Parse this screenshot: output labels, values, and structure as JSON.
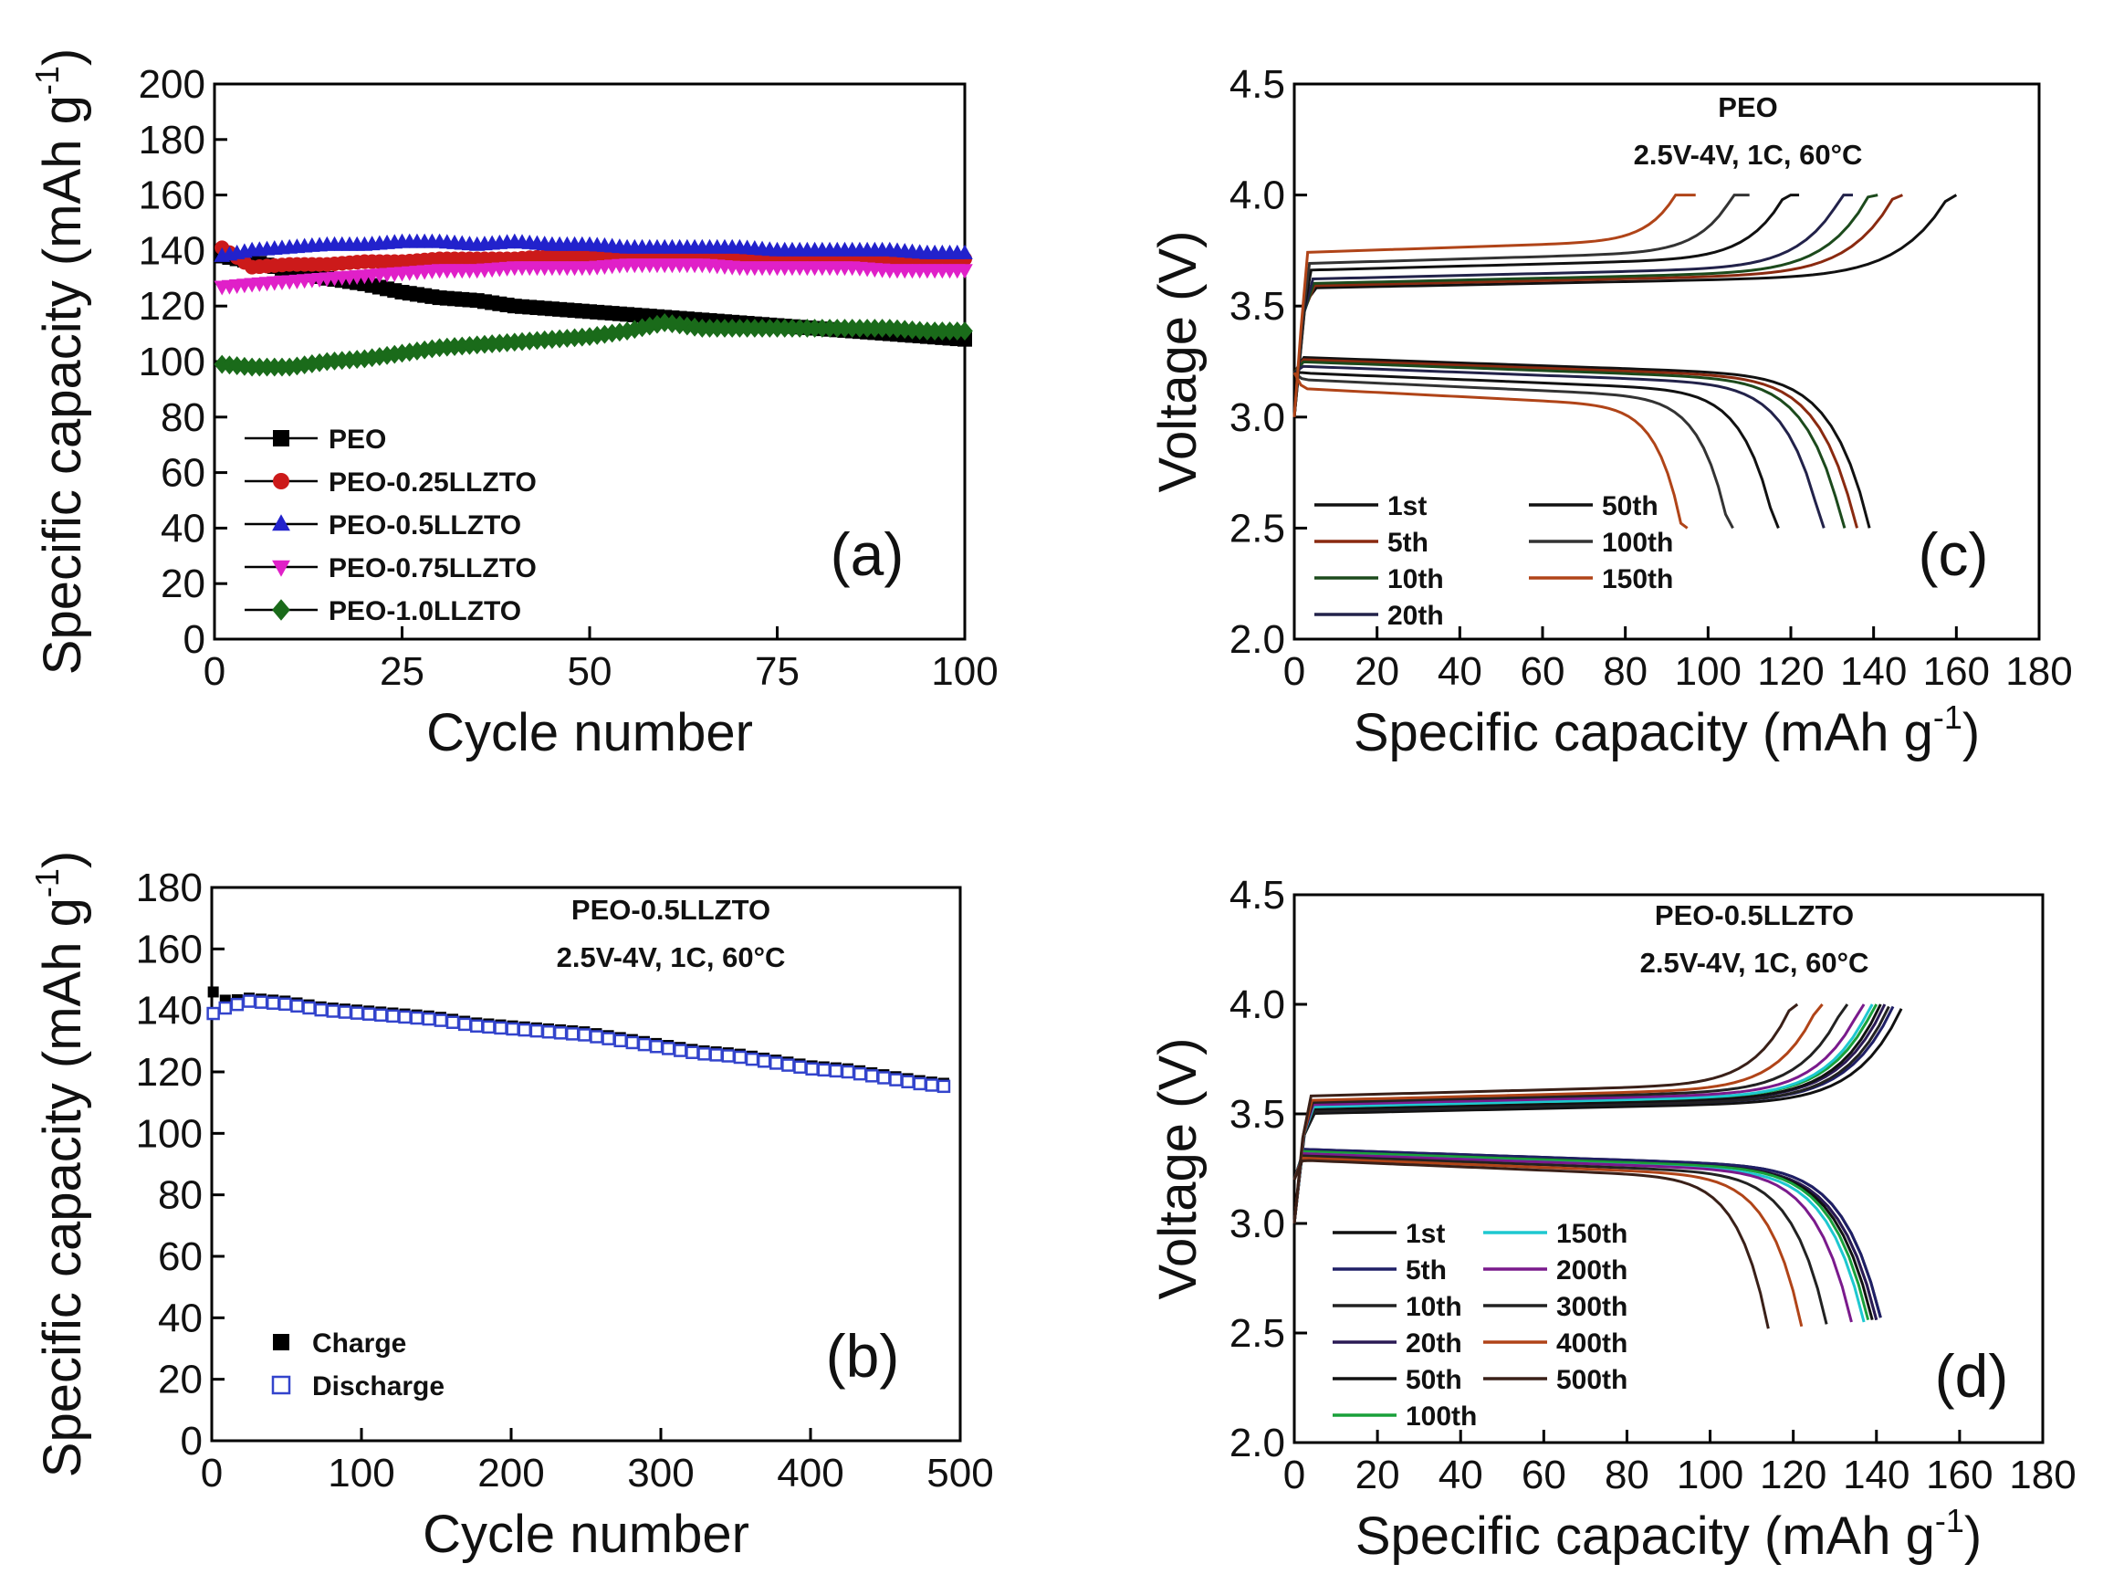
{
  "chart_data": [
    {
      "panel": "a",
      "type": "scatter",
      "panel_label": "(a)",
      "xlabel": "Cycle number",
      "ylabel": "Specific capacity (mAh g",
      "ylabel_sup": "-1",
      "ylabel_end": ")",
      "xlim": [
        0,
        100
      ],
      "ylim": [
        0,
        200
      ],
      "xticks": [
        "0",
        "25",
        "50",
        "75",
        "100"
      ],
      "yticks": [
        "0",
        "20",
        "40",
        "60",
        "80",
        "100",
        "120",
        "140",
        "160",
        "180",
        "200"
      ],
      "legend_position": "bottom-left",
      "series": [
        {
          "name": "PEO",
          "marker": "square",
          "color": "#000000",
          "x": [
            1,
            5,
            10,
            15,
            20,
            25,
            30,
            35,
            40,
            45,
            50,
            55,
            60,
            65,
            70,
            75,
            80,
            85,
            90,
            95,
            100
          ],
          "y": [
            138,
            136,
            133,
            130,
            128,
            125,
            123,
            122,
            120,
            119,
            118,
            117,
            116,
            115,
            114,
            113,
            112,
            111,
            110,
            109,
            108
          ]
        },
        {
          "name": "PEO-0.25LLZTO",
          "marker": "circle",
          "color": "#cc1a1a",
          "x": [
            1,
            5,
            10,
            15,
            20,
            25,
            30,
            35,
            40,
            45,
            50,
            55,
            60,
            65,
            70,
            75,
            80,
            85,
            90,
            95,
            100
          ],
          "y": [
            141,
            134,
            135,
            135,
            136,
            136,
            137,
            137,
            137,
            138,
            138,
            138,
            138,
            138,
            138,
            138,
            138,
            137,
            137,
            137,
            137
          ]
        },
        {
          "name": "PEO-0.5LLZTO",
          "marker": "triangle-up",
          "color": "#2222cc",
          "x": [
            1,
            5,
            10,
            15,
            20,
            25,
            30,
            35,
            40,
            45,
            50,
            55,
            60,
            65,
            70,
            75,
            80,
            85,
            90,
            95,
            100
          ],
          "y": [
            138,
            140,
            141,
            142,
            142,
            143,
            143,
            142,
            143,
            142,
            142,
            141,
            141,
            141,
            141,
            140,
            140,
            140,
            140,
            139,
            139
          ]
        },
        {
          "name": "PEO-0.75LLZTO",
          "marker": "triangle-down",
          "color": "#e020c8",
          "x": [
            1,
            5,
            10,
            15,
            20,
            25,
            30,
            35,
            40,
            45,
            50,
            55,
            60,
            65,
            70,
            75,
            80,
            85,
            90,
            95,
            100
          ],
          "y": [
            127,
            128,
            129,
            130,
            131,
            132,
            133,
            133,
            134,
            134,
            134,
            135,
            135,
            135,
            134,
            134,
            134,
            134,
            133,
            133,
            133
          ]
        },
        {
          "name": "PEO-1.0LLZTO",
          "marker": "diamond",
          "color": "#1a6b1a",
          "x": [
            1,
            5,
            10,
            15,
            20,
            25,
            30,
            35,
            40,
            45,
            50,
            55,
            60,
            65,
            70,
            75,
            80,
            85,
            90,
            95,
            100
          ],
          "y": [
            99,
            98,
            98,
            100,
            101,
            103,
            105,
            106,
            107,
            108,
            109,
            111,
            114,
            112,
            112,
            112,
            112,
            112,
            112,
            111,
            111
          ]
        }
      ]
    },
    {
      "panel": "b",
      "type": "scatter",
      "panel_label": "(b)",
      "xlabel": "Cycle number",
      "ylabel": "Specific capacity (mAh g",
      "ylabel_sup": "-1",
      "ylabel_end": ")",
      "xlim": [
        0,
        500
      ],
      "ylim": [
        0,
        180
      ],
      "xticks": [
        "0",
        "100",
        "200",
        "300",
        "400",
        "500"
      ],
      "yticks": [
        "0",
        "20",
        "40",
        "60",
        "80",
        "100",
        "120",
        "140",
        "160",
        "180"
      ],
      "annotation": [
        "PEO-0.5LLZTO",
        "2.5V-4V, 1C, 60°C"
      ],
      "legend_position": "bottom-left",
      "series": [
        {
          "name": "Charge",
          "marker": "filled-square",
          "color": "#000000",
          "x": [
            1,
            10,
            25,
            50,
            75,
            100,
            125,
            150,
            175,
            200,
            225,
            250,
            275,
            300,
            325,
            350,
            375,
            400,
            425,
            450,
            475,
            495
          ],
          "y": [
            146,
            143,
            144,
            143,
            141,
            140,
            139,
            138,
            136,
            135,
            134,
            133,
            131,
            129,
            127,
            126,
            124,
            122,
            121,
            119,
            117,
            116
          ]
        },
        {
          "name": "Discharge",
          "marker": "open-square",
          "color": "#3344cc",
          "x": [
            1,
            10,
            25,
            50,
            75,
            100,
            125,
            150,
            175,
            200,
            225,
            250,
            275,
            300,
            325,
            350,
            375,
            400,
            425,
            450,
            475,
            495
          ],
          "y": [
            139,
            141,
            143,
            142,
            140,
            139,
            138,
            137,
            135,
            134,
            133,
            132,
            130,
            128,
            126,
            125,
            123,
            121,
            120,
            118,
            116,
            115
          ]
        }
      ]
    },
    {
      "panel": "c",
      "type": "line",
      "panel_label": "(c)",
      "xlabel": "Specific capacity (mAh g",
      "xlabel_sup": "-1",
      "xlabel_end": ")",
      "ylabel": "Voltage (V)",
      "xlim": [
        0,
        180
      ],
      "ylim": [
        2.0,
        4.5
      ],
      "xticks": [
        "0",
        "20",
        "40",
        "60",
        "80",
        "100",
        "120",
        "140",
        "160",
        "180"
      ],
      "yticks": [
        "2.0",
        "2.5",
        "3.0",
        "3.5",
        "4.0",
        "4.5"
      ],
      "annotation": [
        "PEO",
        "2.5V-4V, 1C, 60°C"
      ],
      "legend_position": "bottom-left",
      "series": [
        {
          "name": "1st",
          "color": "#111111",
          "charge_end": 160,
          "charge_plateau": 3.58,
          "discharge_end": 139,
          "discharge_plateau": 3.27
        },
        {
          "name": "5th",
          "color": "#8a2a10",
          "charge_end": 147,
          "charge_plateau": 3.59,
          "discharge_end": 136,
          "discharge_plateau": 3.26
        },
        {
          "name": "10th",
          "color": "#1c4a1c",
          "charge_end": 141,
          "charge_plateau": 3.6,
          "discharge_end": 133,
          "discharge_plateau": 3.25
        },
        {
          "name": "20th",
          "color": "#22224a",
          "charge_end": 135,
          "charge_plateau": 3.62,
          "discharge_end": 128,
          "discharge_plateau": 3.23
        },
        {
          "name": "50th",
          "color": "#111111",
          "charge_end": 122,
          "charge_plateau": 3.66,
          "discharge_end": 117,
          "discharge_plateau": 3.2
        },
        {
          "name": "100th",
          "color": "#333333",
          "charge_end": 110,
          "charge_plateau": 3.69,
          "discharge_end": 106,
          "discharge_plateau": 3.17
        },
        {
          "name": "150th",
          "color": "#b04418",
          "charge_end": 97,
          "charge_plateau": 3.74,
          "discharge_end": 95,
          "discharge_plateau": 3.13
        }
      ]
    },
    {
      "panel": "d",
      "type": "line",
      "panel_label": "(d)",
      "xlabel": "Specific capacity (mAh g",
      "xlabel_sup": "-1",
      "xlabel_end": ")",
      "ylabel": "Voltage (V)",
      "xlim": [
        0,
        180
      ],
      "ylim": [
        2.0,
        4.5
      ],
      "xticks": [
        "0",
        "20",
        "40",
        "60",
        "80",
        "100",
        "120",
        "140",
        "160",
        "180"
      ],
      "yticks": [
        "2.0",
        "2.5",
        "3.0",
        "3.5",
        "4.0",
        "4.5"
      ],
      "annotation": [
        "PEO-0.5LLZTO",
        "2.5V-4V, 1C, 60°C"
      ],
      "legend_position": "bottom-left",
      "series": [
        {
          "name": "1st",
          "color": "#111111",
          "charge_end": 146,
          "charge_plateau": 3.5,
          "discharge_end": 141,
          "discharge_plateau": 3.34
        },
        {
          "name": "5th",
          "color": "#1f1f66",
          "charge_end": 144,
          "charge_plateau": 3.51,
          "discharge_end": 141,
          "discharge_plateau": 3.34
        },
        {
          "name": "10th",
          "color": "#222222",
          "charge_end": 143,
          "charge_plateau": 3.51,
          "discharge_end": 140,
          "discharge_plateau": 3.33
        },
        {
          "name": "20th",
          "color": "#2a1a55",
          "charge_end": 142,
          "charge_plateau": 3.52,
          "discharge_end": 140,
          "discharge_plateau": 3.33
        },
        {
          "name": "50th",
          "color": "#111111",
          "charge_end": 141,
          "charge_plateau": 3.52,
          "discharge_end": 139,
          "discharge_plateau": 3.33
        },
        {
          "name": "100th",
          "color": "#19a03a",
          "charge_end": 140,
          "charge_plateau": 3.53,
          "discharge_end": 138,
          "discharge_plateau": 3.33
        },
        {
          "name": "150th",
          "color": "#1ec8d0",
          "charge_end": 139,
          "charge_plateau": 3.53,
          "discharge_end": 137,
          "discharge_plateau": 3.32
        },
        {
          "name": "200th",
          "color": "#7a1a8c",
          "charge_end": 137,
          "charge_plateau": 3.54,
          "discharge_end": 134,
          "discharge_plateau": 3.32
        },
        {
          "name": "300th",
          "color": "#222222",
          "charge_end": 133,
          "charge_plateau": 3.55,
          "discharge_end": 128,
          "discharge_plateau": 3.31
        },
        {
          "name": "400th",
          "color": "#b04418",
          "charge_end": 127,
          "charge_plateau": 3.56,
          "discharge_end": 122,
          "discharge_plateau": 3.3
        },
        {
          "name": "500th",
          "color": "#3a2018",
          "charge_end": 121,
          "charge_plateau": 3.58,
          "discharge_end": 114,
          "discharge_plateau": 3.29
        }
      ]
    }
  ]
}
